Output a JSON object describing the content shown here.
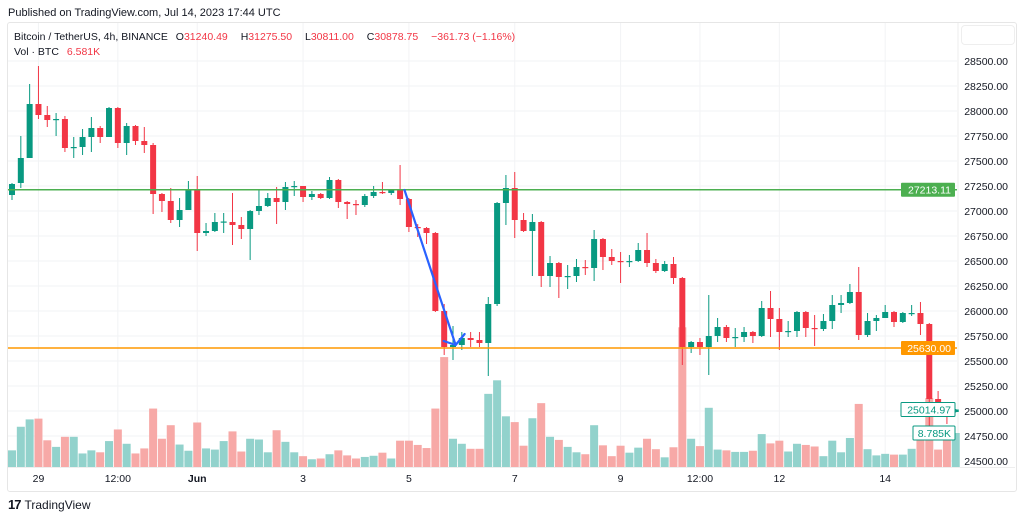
{
  "published": "Published on TradingView.com, Jul 14, 2023 17:44 UTC",
  "legend": {
    "symbol": "Bitcoin / TetherUS, 4h, BINANCE",
    "o_label": "O",
    "o": "31240.49",
    "h_label": "H",
    "h": "31275.50",
    "l_label": "L",
    "l": "30811.00",
    "c_label": "C",
    "c": "30878.75",
    "change": "−361.73 (−1.16%)",
    "vol_label": "Vol · BTC",
    "vol": "6.581K"
  },
  "footer": {
    "brand": "TradingView",
    "logo_text": "17"
  },
  "colors": {
    "up": "#089981",
    "down": "#f23645",
    "up_vol": "#92d2cc",
    "down_vol": "#f7a9a7",
    "resistance": "#4caf50",
    "support": "#ff9800",
    "arrow": "#2962ff"
  },
  "chart_data": {
    "type": "candlestick",
    "ylim": [
      24500,
      28500
    ],
    "y_ticks": [
      "28500.00",
      "28250.00",
      "28000.00",
      "27750.00",
      "27500.00",
      "27250.00",
      "27000.00",
      "26750.00",
      "26500.00",
      "26250.00",
      "26000.00",
      "25750.00",
      "25500.00",
      "25250.00",
      "25000.00",
      "24750.00",
      "24500.00"
    ],
    "x_ticks": [
      {
        "label": "29",
        "index": 3,
        "bold": false
      },
      {
        "label": "12:00",
        "index": 12,
        "bold": false
      },
      {
        "label": "Jun",
        "index": 21,
        "bold": true
      },
      {
        "label": "3",
        "index": 33,
        "bold": false
      },
      {
        "label": "5",
        "index": 45,
        "bold": false
      },
      {
        "label": "7",
        "index": 57,
        "bold": false
      },
      {
        "label": "9",
        "index": 69,
        "bold": false
      },
      {
        "label": "12:00",
        "index": 78,
        "bold": false
      },
      {
        "label": "12",
        "index": 87,
        "bold": false
      },
      {
        "label": "14",
        "index": 99,
        "bold": false
      }
    ],
    "horizontal_lines": [
      {
        "price": 27213.11,
        "label": "27213.11",
        "color": "#4caf50"
      },
      {
        "price": 25630.0,
        "label": "25630.00",
        "color": "#ff9800"
      }
    ],
    "last_price_label": "25014.97",
    "last_volume_label": "8.785K",
    "arrow": {
      "from": {
        "index": 44.5,
        "price": 27210
      },
      "to": {
        "index": 50.3,
        "price": 25660
      }
    },
    "candle_columns": [
      "open",
      "high",
      "low",
      "close",
      "volume_k"
    ],
    "candles": [
      [
        27160,
        27280,
        27110,
        27270,
        4.3
      ],
      [
        27280,
        27750,
        27230,
        27530,
        10.4
      ],
      [
        27530,
        28270,
        27530,
        28070,
        12.3
      ],
      [
        28070,
        28450,
        27920,
        27960,
        12.5
      ],
      [
        27960,
        28050,
        27840,
        27910,
        6.9
      ],
      [
        27910,
        27980,
        27750,
        27920,
        5.2
      ],
      [
        27920,
        27950,
        27590,
        27630,
        7.8
      ],
      [
        27630,
        27740,
        27530,
        27640,
        7.8
      ],
      [
        27640,
        27820,
        27560,
        27740,
        3.5
      ],
      [
        27740,
        27940,
        27590,
        27830,
        4.3
      ],
      [
        27830,
        27850,
        27680,
        27740,
        3.8
      ],
      [
        27740,
        28040,
        27740,
        28030,
        6.7
      ],
      [
        28030,
        28040,
        27630,
        27680,
        9.7
      ],
      [
        27680,
        27880,
        27560,
        27850,
        6.0
      ],
      [
        27850,
        27860,
        27660,
        27700,
        3.5
      ],
      [
        27700,
        27840,
        27580,
        27660,
        4.8
      ],
      [
        27660,
        27680,
        26970,
        27170,
        15.1
      ],
      [
        27170,
        27180,
        26990,
        27100,
        7.3
      ],
      [
        27100,
        27230,
        26880,
        26910,
        10.8
      ],
      [
        26910,
        27130,
        26840,
        27010,
        5.8
      ],
      [
        27010,
        27300,
        27010,
        27210,
        4.2
      ],
      [
        27210,
        27350,
        26600,
        26780,
        11.5
      ],
      [
        26780,
        26880,
        26750,
        26800,
        4.8
      ],
      [
        26800,
        26980,
        26790,
        26890,
        4.5
      ],
      [
        26890,
        26980,
        26780,
        26895,
        6.7
      ],
      [
        26890,
        27180,
        26660,
        26860,
        9.2
      ],
      [
        26860,
        26940,
        26720,
        26820,
        4.0
      ],
      [
        26820,
        27010,
        26510,
        27000,
        7.3
      ],
      [
        27000,
        27210,
        26960,
        27050,
        7.1
      ],
      [
        27050,
        27180,
        27040,
        27130,
        3.8
      ],
      [
        27130,
        27240,
        26870,
        27090,
        9.5
      ],
      [
        27090,
        27290,
        27010,
        27240,
        6.5
      ],
      [
        27240,
        27300,
        27150,
        27250,
        3.8
      ],
      [
        27250,
        27250,
        27090,
        27140,
        2.8
      ],
      [
        27140,
        27200,
        27110,
        27170,
        2.0
      ],
      [
        27170,
        27180,
        27120,
        27130,
        2.2
      ],
      [
        27130,
        27340,
        27120,
        27310,
        3.3
      ],
      [
        27310,
        27320,
        27030,
        27090,
        4.3
      ],
      [
        27090,
        27100,
        26920,
        27070,
        3.0
      ],
      [
        27070,
        27110,
        26960,
        27060,
        2.2
      ],
      [
        27060,
        27170,
        27040,
        27150,
        2.6
      ],
      [
        27150,
        27250,
        27130,
        27190,
        2.9
      ],
      [
        27190,
        27290,
        27170,
        27180,
        3.7
      ],
      [
        27180,
        27220,
        27160,
        27210,
        2.2
      ],
      [
        27210,
        27460,
        27060,
        27120,
        6.8
      ],
      [
        27120,
        27130,
        26790,
        26840,
        6.8
      ],
      [
        26840,
        26870,
        26740,
        26830,
        5.7
      ],
      [
        26830,
        26840,
        26670,
        26780,
        4.9
      ],
      [
        26780,
        26790,
        25990,
        26000,
        15.1
      ],
      [
        26000,
        26070,
        25560,
        25640,
        28.4
      ],
      [
        25640,
        25850,
        25510,
        25660,
        7.3
      ],
      [
        25660,
        25790,
        25610,
        25730,
        6.0
      ],
      [
        25730,
        25790,
        25640,
        25710,
        4.7
      ],
      [
        25710,
        25790,
        25640,
        25680,
        4.7
      ],
      [
        25680,
        26140,
        25350,
        26070,
        18.9
      ],
      [
        26070,
        27090,
        26050,
        27080,
        22.4
      ],
      [
        27080,
        27360,
        26860,
        27230,
        13.1
      ],
      [
        27230,
        27390,
        26730,
        26910,
        11.6
      ],
      [
        26910,
        26980,
        26790,
        26800,
        5.5
      ],
      [
        26800,
        26970,
        26350,
        26890,
        12.6
      ],
      [
        26890,
        26900,
        26240,
        26350,
        16.5
      ],
      [
        26350,
        26550,
        26240,
        26480,
        7.8
      ],
      [
        26480,
        26490,
        26130,
        26340,
        7.0
      ],
      [
        26340,
        26460,
        26220,
        26350,
        5.2
      ],
      [
        26350,
        26520,
        26290,
        26440,
        3.8
      ],
      [
        26440,
        26510,
        26360,
        26430,
        3.3
      ],
      [
        26430,
        26810,
        26300,
        26720,
        10.8
      ],
      [
        26720,
        26730,
        26410,
        26540,
        5.6
      ],
      [
        26540,
        26620,
        26460,
        26500,
        2.8
      ],
      [
        26500,
        26590,
        26280,
        26490,
        5.5
      ],
      [
        26490,
        26560,
        26440,
        26500,
        3.7
      ],
      [
        26500,
        26680,
        26490,
        26610,
        5.0
      ],
      [
        26610,
        26780,
        26440,
        26480,
        7.3
      ],
      [
        26480,
        26520,
        26380,
        26400,
        4.6
      ],
      [
        26400,
        26500,
        26390,
        26470,
        2.5
      ],
      [
        26470,
        26540,
        26270,
        26330,
        5.1
      ],
      [
        26330,
        26340,
        25460,
        25640,
        36.1
      ],
      [
        25640,
        25700,
        25580,
        25690,
        7.3
      ],
      [
        25690,
        25730,
        25560,
        25640,
        5.4
      ],
      [
        25640,
        26160,
        25360,
        25750,
        15.3
      ],
      [
        25750,
        25930,
        25690,
        25840,
        4.5
      ],
      [
        25840,
        25860,
        25690,
        25730,
        4.3
      ],
      [
        25730,
        25830,
        25640,
        25740,
        3.9
      ],
      [
        25740,
        25840,
        25690,
        25790,
        3.9
      ],
      [
        25790,
        25800,
        25680,
        25750,
        4.2
      ],
      [
        25750,
        26100,
        25740,
        26030,
        8.5
      ],
      [
        26030,
        26200,
        25740,
        25920,
        6.1
      ],
      [
        25920,
        26030,
        25610,
        25790,
        6.8
      ],
      [
        25790,
        25900,
        25740,
        25800,
        4.0
      ],
      [
        25800,
        26000,
        25740,
        25990,
        6.0
      ],
      [
        25990,
        26000,
        25740,
        25830,
        5.7
      ],
      [
        25830,
        25960,
        25650,
        25820,
        5.3
      ],
      [
        25820,
        25970,
        25800,
        25900,
        2.8
      ],
      [
        25900,
        26160,
        25820,
        26060,
        6.8
      ],
      [
        26060,
        26160,
        25980,
        26080,
        3.8
      ],
      [
        26080,
        26270,
        26070,
        26190,
        7.5
      ],
      [
        26190,
        26440,
        25710,
        25760,
        16.3
      ],
      [
        25760,
        25980,
        25740,
        25900,
        4.6
      ],
      [
        25900,
        25960,
        25800,
        25930,
        3.0
      ],
      [
        25930,
        26060,
        25930,
        25990,
        3.4
      ],
      [
        25990,
        26000,
        25840,
        25890,
        3.2
      ],
      [
        25890,
        25990,
        25880,
        25980,
        3.2
      ],
      [
        25970,
        26060,
        25950,
        25980,
        4.7
      ],
      [
        25980,
        26090,
        25760,
        25870,
        8.8
      ],
      [
        25870,
        25880,
        24830,
        25120,
        17.8
      ],
      [
        25120,
        25200,
        25030,
        25060,
        4.5
      ],
      [
        25060,
        25070,
        24870,
        24980,
        7.9
      ],
      [
        24990,
        25020,
        24985,
        25015,
        8.785
      ]
    ]
  }
}
